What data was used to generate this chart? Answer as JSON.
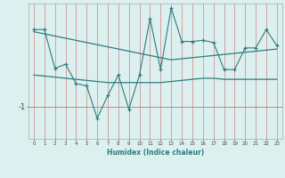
{
  "title": "",
  "xlabel": "Humidex (Indice chaleur)",
  "background_color": "#ddf0f0",
  "line_color": "#2a7d7d",
  "x": [
    0,
    1,
    2,
    3,
    4,
    5,
    6,
    7,
    8,
    9,
    10,
    11,
    12,
    13,
    14,
    15,
    16,
    17,
    18,
    19,
    20,
    21,
    22,
    23
  ],
  "y_data": [
    0.42,
    0.42,
    -0.3,
    -0.22,
    -0.58,
    -0.62,
    -1.22,
    -0.8,
    -0.42,
    -1.05,
    -0.42,
    0.62,
    -0.32,
    0.82,
    0.2,
    0.2,
    0.22,
    0.18,
    -0.32,
    -0.32,
    0.08,
    0.08,
    0.42,
    0.12
  ],
  "y_upper": [
    0.38,
    0.34,
    0.3,
    0.26,
    0.22,
    0.18,
    0.14,
    0.1,
    0.06,
    0.02,
    -0.02,
    -0.06,
    -0.1,
    -0.14,
    -0.12,
    -0.1,
    -0.08,
    -0.06,
    -0.04,
    -0.02,
    0.0,
    0.02,
    0.04,
    0.06
  ],
  "y_lower": [
    -0.42,
    -0.44,
    -0.46,
    -0.48,
    -0.5,
    -0.52,
    -0.54,
    -0.56,
    -0.56,
    -0.56,
    -0.56,
    -0.56,
    -0.56,
    -0.54,
    -0.52,
    -0.5,
    -0.48,
    -0.48,
    -0.5,
    -0.5,
    -0.5,
    -0.5,
    -0.5,
    -0.5
  ],
  "ylim": [
    -1.6,
    0.9
  ],
  "xlim": [
    -0.5,
    23.5
  ],
  "yticks": [
    -1
  ],
  "xticks": [
    0,
    1,
    2,
    3,
    4,
    5,
    6,
    7,
    8,
    9,
    10,
    11,
    12,
    13,
    14,
    15,
    16,
    17,
    18,
    19,
    20,
    21,
    22,
    23
  ]
}
